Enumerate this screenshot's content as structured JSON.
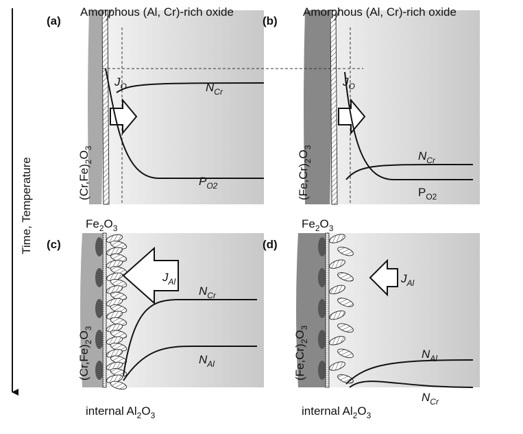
{
  "axis_label": "Time, Temperature",
  "panels": [
    {
      "label": "(a)",
      "oxide_note": "Amorphous (Al, Cr)-rich oxide",
      "scale": [
        "(Cr,Fe)",
        "2",
        "O",
        "3"
      ],
      "flux": [
        "J",
        "O"
      ],
      "curves": [
        [
          "N",
          "Cr"
        ],
        [
          "P",
          "O2"
        ]
      ]
    },
    {
      "label": "(b)",
      "oxide_note": "Amorphous (Al, Cr)-rich oxide",
      "scale": [
        "(Fe,Cr)",
        "2",
        "O",
        "3"
      ],
      "flux": [
        "J",
        "O"
      ],
      "curves": [
        [
          "N",
          "Cr"
        ],
        [
          "P",
          "O2"
        ]
      ]
    },
    {
      "label": "(c)",
      "top_note": [
        "Fe",
        "2",
        "O",
        "3"
      ],
      "scale": [
        "(Cr,Fe)",
        "2",
        "O",
        "3"
      ],
      "flux": [
        "J",
        "Al"
      ],
      "curves": [
        [
          "N",
          "Cr"
        ],
        [
          "N",
          "Al"
        ]
      ],
      "bottom_note": [
        "internal Al",
        "2",
        "O",
        "3"
      ]
    },
    {
      "label": "(d)",
      "top_note": [
        "Fe",
        "2",
        "O",
        "3"
      ],
      "scale": [
        "(Fe,Cr)",
        "2",
        "O",
        "3"
      ],
      "flux": [
        "J",
        "Al"
      ],
      "curves": [
        [
          "N",
          "Al"
        ],
        [
          "N",
          "Cr"
        ]
      ],
      "bottom_note": [
        "internal Al",
        "2",
        "O",
        "3"
      ]
    }
  ]
}
